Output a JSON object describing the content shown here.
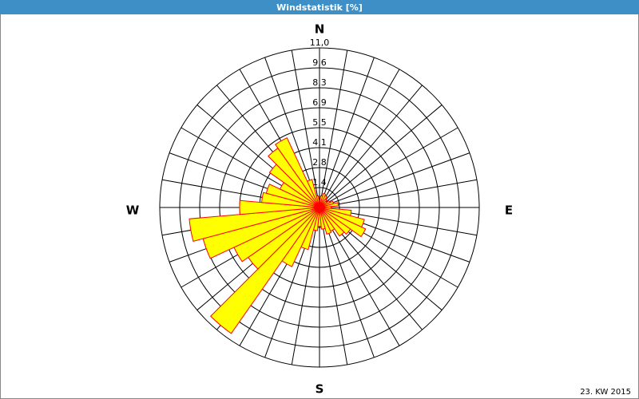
{
  "chart_data": {
    "type": "windrose",
    "title": "Windstatistik [%]",
    "footer": "23. KW 2015",
    "directions": [
      "N",
      "E",
      "S",
      "W"
    ],
    "values": [
      0.5,
      0.8,
      1.0,
      0.9,
      0.7,
      0.6,
      0.8,
      1.0,
      1.3,
      0.8,
      2.2,
      3.2,
      3.5,
      2.6,
      2.4,
      1.8,
      1.9,
      1.5,
      1.3,
      1.6,
      3.0,
      4.5,
      10.6,
      6.0,
      6.5,
      8.3,
      9.0,
      5.5,
      4.0,
      3.8,
      3.0,
      4.2,
      5.0,
      5.3,
      2.0,
      0.8
    ],
    "color": "#ffff00",
    "edge_color": "#ff0000",
    "rlim": [
      0,
      11
    ],
    "rticks": [
      {
        "value": 1.375,
        "label": "1,4"
      },
      {
        "value": 2.75,
        "label": "2,8"
      },
      {
        "value": 4.125,
        "label": "4,1"
      },
      {
        "value": 5.5,
        "label": "5,5"
      },
      {
        "value": 6.875,
        "label": "6,9"
      },
      {
        "value": 8.25,
        "label": "8,3"
      },
      {
        "value": 9.625,
        "label": "9,6"
      },
      {
        "value": 11,
        "label": "11,0"
      }
    ],
    "grid": true
  }
}
